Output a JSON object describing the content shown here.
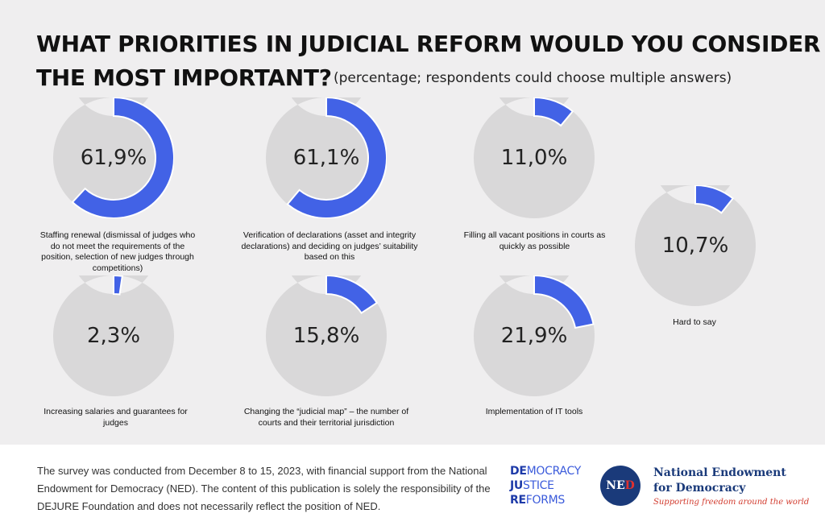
{
  "header": {
    "title_line1": "WHAT PRIORITIES IN JUDICIAL REFORM WOULD YOU CONSIDER",
    "title_line2": "THE MOST IMPORTANT?",
    "subtitle": "(percentage; respondents could choose multiple answers)"
  },
  "chart_data": {
    "type": "pie",
    "variant": "donut-grid",
    "unit": "%",
    "colors": {
      "fill": "#4262e6",
      "track": "#d9d8d9"
    },
    "items": [
      {
        "label": "Staffing renewal (dismissal of judges who do not meet the requirements of the position, selection of new judges through competitions)",
        "value": 61.9,
        "display": "61,9%"
      },
      {
        "label": "Verification of declarations (asset and integrity declarations) and deciding on judges’ suitability based on this",
        "value": 61.1,
        "display": "61,1%"
      },
      {
        "label": "Filling all vacant positions in courts as quickly as possible",
        "value": 11.0,
        "display": "11,0%"
      },
      {
        "label": "Hard to say",
        "value": 10.7,
        "display": "10,7%"
      },
      {
        "label": "Increasing salaries and guarantees for judges",
        "value": 2.3,
        "display": "2,3%"
      },
      {
        "label": "Changing the “judicial map” – the number of courts and their territorial jurisdiction",
        "value": 15.8,
        "display": "15,8%"
      },
      {
        "label": "Implementation of IT tools",
        "value": 21.9,
        "display": "21,9%"
      }
    ]
  },
  "footer": {
    "note": "The survey was conducted from December 8 to 15, 2023, with financial support from the National Endowment for Democracy (NED). The content of this publication is solely the responsibility of the DEJURE Foundation and does not necessarily reflect the position of NED.",
    "djr": {
      "line1_bold": "DE",
      "line1_rest": "MOCRACY",
      "line2_bold": "JU",
      "line2_rest": "STICE",
      "line3_bold": "RE",
      "line3_rest": "FORMS"
    },
    "ned_logo": {
      "part1": "NE",
      "part2": "D"
    },
    "ned_name_line1": "National Endowment",
    "ned_name_line2": "for Democracy",
    "ned_tagline": "Supporting freedom around the world"
  }
}
